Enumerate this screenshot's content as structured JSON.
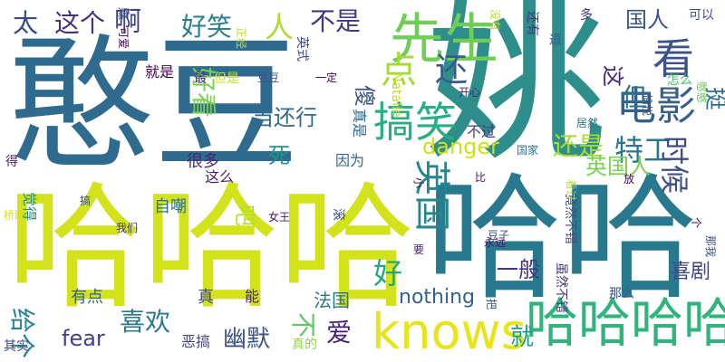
{
  "words": [
    {
      "text": "憨豆",
      "color": "#2f6b8e"
    },
    {
      "text": "哈哈哈",
      "color": "#d2e21b"
    },
    {
      "text": "姚",
      "color": "#2d8e8b"
    },
    {
      "text": "哈哈",
      "color": "#29798e"
    },
    {
      "text": "knows",
      "color": "#e7e419"
    },
    {
      "text": "哈哈哈哈",
      "color": "#2fb47c"
    },
    {
      "text": "先生",
      "color": "#6ece58"
    },
    {
      "text": "看",
      "color": "#3b528b"
    },
    {
      "text": "搞笑",
      "color": "#29af7f"
    },
    {
      "text": "电影",
      "color": "#355f8d"
    },
    {
      "text": "英国",
      "color": "#24868e"
    },
    {
      "text": "点",
      "color": "#a2da37"
    },
    {
      "text": "还",
      "color": "#375b8d"
    },
    {
      "text": "人",
      "color": "#addc30"
    },
    {
      "text": "好",
      "color": "#22a785"
    },
    {
      "text": "啊",
      "color": "#404387"
    },
    {
      "text": "不是",
      "color": "#453781"
    },
    {
      "text": "太",
      "color": "#3e4989"
    },
    {
      "text": "这个",
      "color": "#462f7e"
    },
    {
      "text": "好笑",
      "color": "#287d8e"
    },
    {
      "text": "特工",
      "color": "#2a768e"
    },
    {
      "text": "时候",
      "color": "#3d4d8a"
    },
    {
      "text": "还是",
      "color": "#a8db34"
    },
    {
      "text": "英国人",
      "color": "#7ad151"
    },
    {
      "text": "国人",
      "color": "#3a548c"
    },
    {
      "text": "但",
      "color": "#2c728e"
    },
    {
      "text": "挺",
      "color": "#2e6f8e"
    },
    {
      "text": "这",
      "color": "#482576"
    },
    {
      "text": "好看",
      "color": "#7ad151"
    },
    {
      "text": "当还行",
      "color": "#31688e"
    },
    {
      "text": "死",
      "color": "#1f958b"
    },
    {
      "text": "danger",
      "color": "#cde11d"
    },
    {
      "text": "nothing",
      "color": "#34618d"
    },
    {
      "text": "fear",
      "color": "#424086"
    },
    {
      "text": "喜欢",
      "color": "#2a788e"
    },
    {
      "text": "给个",
      "color": "#24868e"
    },
    {
      "text": "幽默",
      "color": "#3b528b"
    },
    {
      "text": "爱",
      "color": "#481f70"
    },
    {
      "text": "不",
      "color": "#5ec962"
    },
    {
      "text": "就",
      "color": "#1e9b8a"
    },
    {
      "text": "一般",
      "color": "#453882"
    },
    {
      "text": "喜剧",
      "color": "#414487"
    },
    {
      "text": "法国",
      "color": "#2c718e"
    },
    {
      "text": "有点",
      "color": "#33638d"
    },
    {
      "text": "真",
      "color": "#404588"
    },
    {
      "text": "能",
      "color": "#482475"
    },
    {
      "text": "恶搞",
      "color": "#3f4889"
    },
    {
      "text": "真的",
      "color": "#93d741"
    },
    {
      "text": "吧",
      "color": "#b5de2b"
    },
    {
      "text": "自嘲",
      "color": "#2e6e8e"
    },
    {
      "text": "很多",
      "color": "#482576"
    },
    {
      "text": "这么",
      "color": "#481a6c"
    },
    {
      "text": "因为",
      "color": "#32658e"
    },
    {
      "text": "傻",
      "color": "#3b528b"
    },
    {
      "text": "真是",
      "color": "#31688e"
    },
    {
      "text": "不过",
      "color": "#443a83"
    },
    {
      "text": "竟然不错",
      "color": "#3e4c8a"
    },
    {
      "text": "虽然不错",
      "color": "#453781"
    },
    {
      "text": "那么",
      "color": "#3a538b"
    },
    {
      "text": "一定",
      "color": "#440154"
    },
    {
      "text": "豆豆",
      "color": "#3b528b"
    },
    {
      "text": "但是",
      "color": "#c8e020"
    },
    {
      "text": "最",
      "color": "#46337e"
    },
    {
      "text": "就是",
      "color": "#440154"
    },
    {
      "text": "还有",
      "color": "#46307e"
    },
    {
      "text": "可以",
      "color": "#3e4a89"
    },
    {
      "text": "多",
      "color": "#472d7b"
    },
    {
      "text": "逗",
      "color": "#375a8c"
    },
    {
      "text": "开心",
      "color": "#482878"
    },
    {
      "text": "居然",
      "color": "#2d708e"
    },
    {
      "text": "国家",
      "color": "#2a788e"
    },
    {
      "text": "Natalie",
      "color": "#bddf26"
    },
    {
      "text": "英式",
      "color": "#3e4a89"
    },
    {
      "text": "正经",
      "color": "#bddf26"
    },
    {
      "text": "没有",
      "color": "#bddf26"
    },
    {
      "text": "怎么",
      "color": "#4ac16d"
    },
    {
      "text": "憨憨",
      "color": "#6ccd5a"
    },
    {
      "text": "愉悦",
      "color": "#3b528b"
    },
    {
      "text": "看过",
      "color": "#bddf26"
    },
    {
      "text": "放",
      "color": "#440154"
    },
    {
      "text": "女王",
      "color": "#481769"
    },
    {
      "text": "滚",
      "color": "#3c508b"
    },
    {
      "text": "我们",
      "color": "#453781"
    },
    {
      "text": "永远",
      "color": "#481769"
    },
    {
      "text": "豆子",
      "color": "#3b528b"
    },
    {
      "text": "要",
      "color": "#482173"
    },
    {
      "text": "把",
      "color": "#3b528b"
    },
    {
      "text": "比",
      "color": "#481a6c"
    },
    {
      "text": "小",
      "color": "#440154"
    },
    {
      "text": "搞",
      "color": "#3b528b"
    },
    {
      "text": "得",
      "color": "#481f70"
    },
    {
      "text": "桥段",
      "color": "#d8e219"
    },
    {
      "text": "觉得",
      "color": "#21918c"
    },
    {
      "text": "森",
      "color": "#3b528b"
    },
    {
      "text": "可爱",
      "color": "#440154"
    },
    {
      "text": "其实",
      "color": "#3e4989"
    },
    {
      "text": "那我",
      "color": "#3b528b"
    },
    {
      "text": "个",
      "color": "#440154"
    }
  ]
}
